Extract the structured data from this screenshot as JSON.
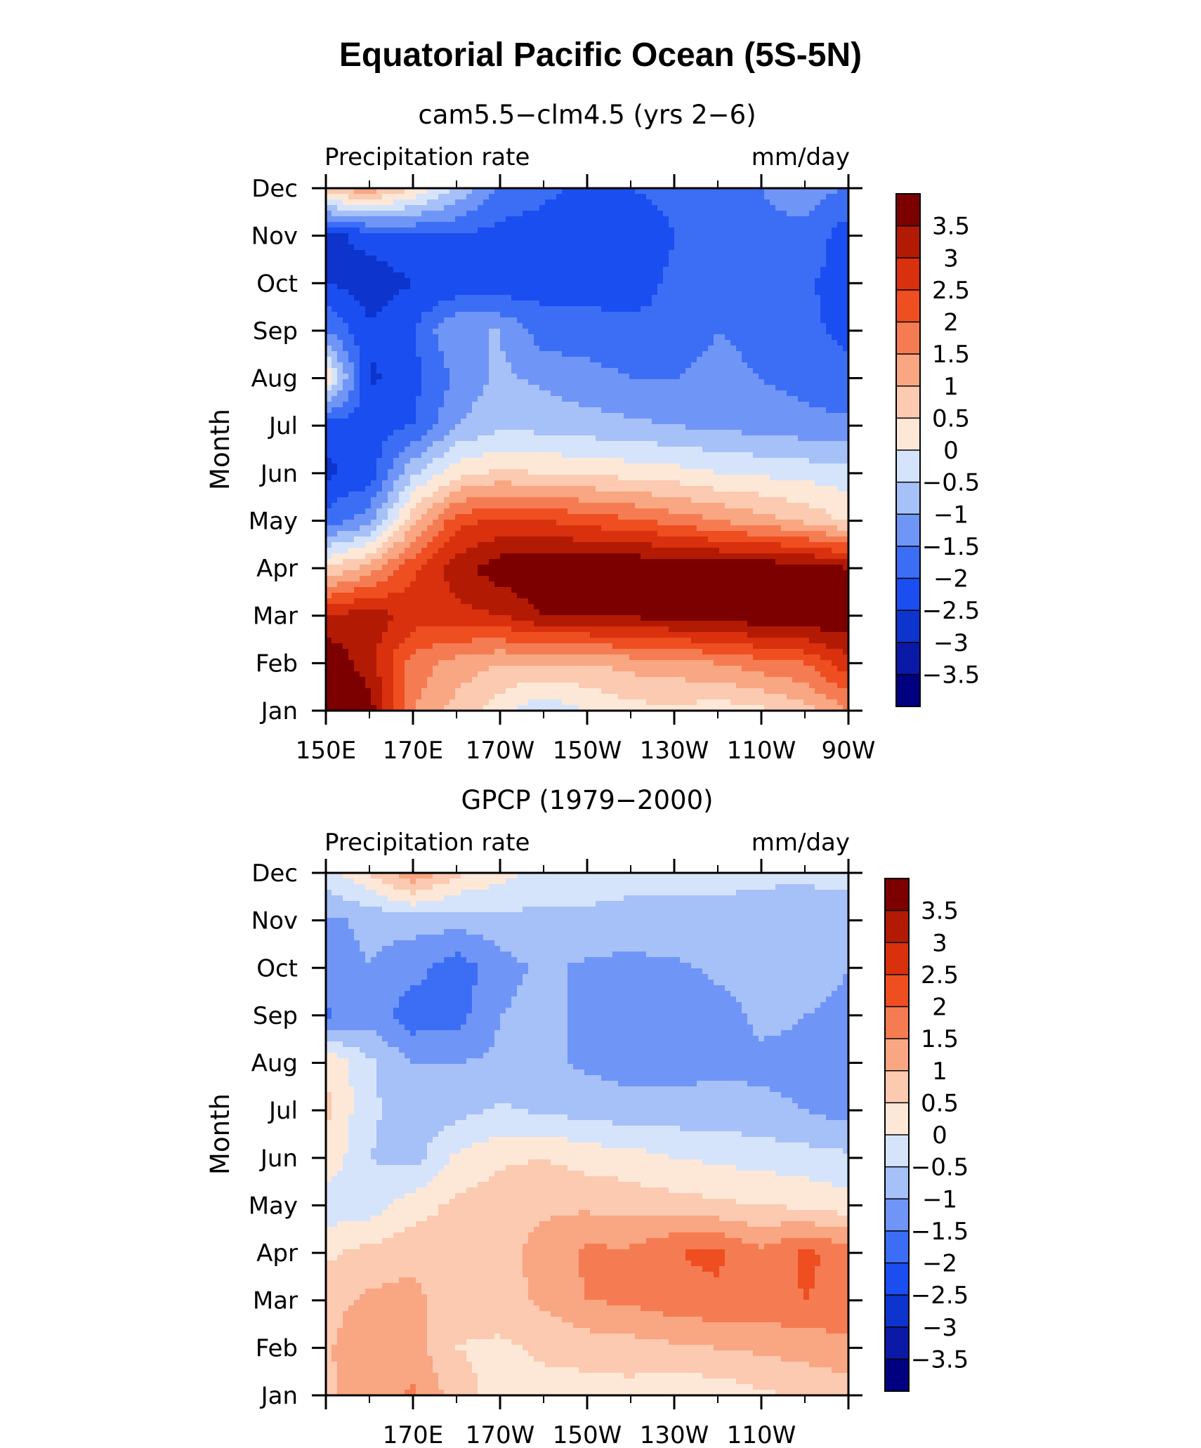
{
  "figure": {
    "title": "Equatorial Pacific Ocean (5S-5N)"
  },
  "chart_data": [
    {
      "type": "heatmap",
      "title": "cam5.5−clm4.5 (yrs 2−6)",
      "left_label": "Precipitation rate",
      "right_label": "mm/day",
      "ylabel": "Month",
      "xlabel": "",
      "x_tick_labels": [
        "150E",
        "170E",
        "170W",
        "150W",
        "130W",
        "110W",
        "90W"
      ],
      "y_tick_labels": [
        "Jan",
        "Feb",
        "Mar",
        "Apr",
        "May",
        "Jun",
        "Jul",
        "Aug",
        "Sep",
        "Oct",
        "Nov",
        "Dec"
      ],
      "x": [
        150,
        160,
        170,
        180,
        190,
        200,
        210,
        220,
        230,
        240,
        250,
        260,
        270
      ],
      "values": [
        [
          4.0,
          3.8,
          1.5,
          0.8,
          0.2,
          -0.4,
          0.0,
          0.3,
          0.4,
          0.2,
          0.4,
          0.8,
          1.5
        ],
        [
          4.0,
          3.2,
          1.8,
          1.3,
          1.0,
          1.0,
          1.0,
          1.2,
          1.3,
          1.5,
          1.8,
          2.0,
          2.8
        ],
        [
          3.0,
          3.3,
          2.8,
          2.8,
          3.0,
          3.5,
          3.5,
          3.6,
          3.7,
          3.8,
          3.9,
          4.0,
          4.0
        ],
        [
          0.5,
          1.2,
          2.4,
          3.3,
          3.8,
          4.0,
          4.0,
          4.0,
          4.0,
          3.9,
          3.9,
          3.8,
          3.5
        ],
        [
          -1.8,
          -1.2,
          0.8,
          2.3,
          2.6,
          2.5,
          2.3,
          2.1,
          1.8,
          1.5,
          1.2,
          0.9,
          0.4
        ],
        [
          -2.6,
          -2.3,
          -0.6,
          0.3,
          0.6,
          0.5,
          0.4,
          0.3,
          0.2,
          0.0,
          -0.1,
          -0.2,
          -0.3
        ],
        [
          -2.3,
          -2.2,
          -2.0,
          -1.0,
          -0.6,
          -0.7,
          -0.8,
          -0.9,
          -1.0,
          -1.1,
          -1.2,
          -1.3,
          -1.4
        ],
        [
          0.5,
          -2.6,
          -2.2,
          -1.4,
          -0.9,
          -1.1,
          -1.3,
          -1.5,
          -1.5,
          -1.3,
          -1.5,
          -1.7,
          -1.9
        ],
        [
          -1.5,
          -2.4,
          -2.0,
          -1.0,
          -1.0,
          -1.8,
          -1.8,
          -1.9,
          -1.9,
          -1.5,
          -1.7,
          -1.9,
          -2.1
        ],
        [
          -2.5,
          -2.8,
          -2.5,
          -2.4,
          -2.4,
          -2.2,
          -2.2,
          -2.2,
          -1.9,
          -1.7,
          -1.8,
          -1.9,
          -2.3
        ],
        [
          -2.7,
          -2.3,
          -2.1,
          -2.0,
          -2.2,
          -2.2,
          -2.4,
          -2.5,
          -2.0,
          -1.8,
          -1.6,
          -1.6,
          -2.3
        ],
        [
          0.8,
          1.4,
          0.5,
          -0.6,
          -1.6,
          -1.9,
          -2.1,
          -2.0,
          -1.8,
          -1.7,
          -1.5,
          -1.3,
          -1.5
        ]
      ],
      "levels": [
        -3.5,
        -3,
        -2.5,
        -2,
        -1.5,
        -1,
        -0.5,
        0,
        0.5,
        1,
        1.5,
        2,
        2.5,
        3,
        3.5
      ],
      "colorbar_labels": [
        "3.5",
        "3",
        "2.5",
        "2",
        "1.5",
        "1",
        "0.5",
        "0",
        "−0.5",
        "−1",
        "−1.5",
        "−2",
        "−2.5",
        "−3",
        "−3.5"
      ]
    },
    {
      "type": "heatmap",
      "title": "GPCP (1979−2000)",
      "left_label": "Precipitation rate",
      "right_label": "mm/day",
      "ylabel": "Month",
      "xlabel": "",
      "x_tick_labels": [
        "170E",
        "170W",
        "150W",
        "130W",
        "110W"
      ],
      "y_tick_labels": [
        "Jan",
        "Feb",
        "Mar",
        "Apr",
        "May",
        "Jun",
        "Jul",
        "Aug",
        "Sep",
        "Oct",
        "Nov",
        "Dec"
      ],
      "x": [
        150,
        160,
        170,
        180,
        190,
        200,
        210,
        220,
        230,
        240,
        250,
        260,
        270
      ],
      "values": [
        [
          0.9,
          1.2,
          1.6,
          0.7,
          0.3,
          0.3,
          0.3,
          0.3,
          0.1,
          0.2,
          0.4,
          0.6,
          0.8
        ],
        [
          0.9,
          1.5,
          1.2,
          0.5,
          0.4,
          0.6,
          0.7,
          0.8,
          0.9,
          1.0,
          1.1,
          1.2,
          1.3
        ],
        [
          0.8,
          1.1,
          1.2,
          0.6,
          0.8,
          1.1,
          1.5,
          1.6,
          1.8,
          1.9,
          1.8,
          2.0,
          1.9
        ],
        [
          0.4,
          0.7,
          0.8,
          0.6,
          0.8,
          1.2,
          1.6,
          1.6,
          2.0,
          2.1,
          1.6,
          2.1,
          1.8
        ],
        [
          -0.3,
          -0.3,
          0.3,
          0.6,
          0.8,
          0.9,
          0.9,
          0.8,
          0.7,
          0.6,
          0.5,
          0.4,
          0.2
        ],
        [
          0.4,
          -0.5,
          -0.7,
          0.1,
          0.4,
          0.5,
          0.3,
          0.2,
          0.0,
          -0.1,
          -0.2,
          -0.3,
          -0.4
        ],
        [
          0.6,
          -0.4,
          -0.8,
          -0.7,
          -0.4,
          -0.6,
          -0.7,
          -0.8,
          -0.8,
          -0.8,
          -0.9,
          -1.0,
          -1.2
        ],
        [
          0.5,
          -0.4,
          -1.0,
          -1.0,
          -0.9,
          -0.9,
          -1.1,
          -1.2,
          -1.2,
          -1.1,
          -1.1,
          -1.1,
          -1.2
        ],
        [
          -1.6,
          -1.2,
          -1.8,
          -1.7,
          -1.0,
          -0.8,
          -1.2,
          -1.3,
          -1.3,
          -1.2,
          -0.9,
          -1.0,
          -1.1
        ],
        [
          -1.2,
          -1.0,
          -1.3,
          -1.8,
          -1.2,
          -0.9,
          -1.1,
          -1.2,
          -1.1,
          -0.9,
          -0.8,
          -0.8,
          -1.0
        ],
        [
          -1.1,
          -0.9,
          -0.8,
          -0.8,
          -0.7,
          -0.6,
          -0.6,
          -0.6,
          -0.6,
          -0.6,
          -0.7,
          -0.8,
          -0.8
        ],
        [
          -0.2,
          0.5,
          1.5,
          0.6,
          0.2,
          -0.2,
          -0.3,
          -0.4,
          -0.4,
          -0.4,
          -0.4,
          -0.4,
          -0.3
        ]
      ],
      "levels": [
        -3.5,
        -3,
        -2.5,
        -2,
        -1.5,
        -1,
        -0.5,
        0,
        0.5,
        1,
        1.5,
        2,
        2.5,
        3,
        3.5
      ],
      "colorbar_labels": [
        "3.5",
        "3",
        "2.5",
        "2",
        "1.5",
        "1",
        "0.5",
        "0",
        "−0.5",
        "−1",
        "−1.5",
        "−2",
        "−2.5",
        "−3",
        "−3.5"
      ]
    }
  ],
  "colors": {
    "palette": [
      "#000080",
      "#0a1aa6",
      "#0d34cc",
      "#1a4ef0",
      "#3c6ef5",
      "#6f95f7",
      "#a6c0f8",
      "#d6e4fb",
      "#fde8d8",
      "#fbcab0",
      "#f9a682",
      "#f57c52",
      "#ee4e20",
      "#d9300d",
      "#b21a04",
      "#7d0000"
    ]
  }
}
